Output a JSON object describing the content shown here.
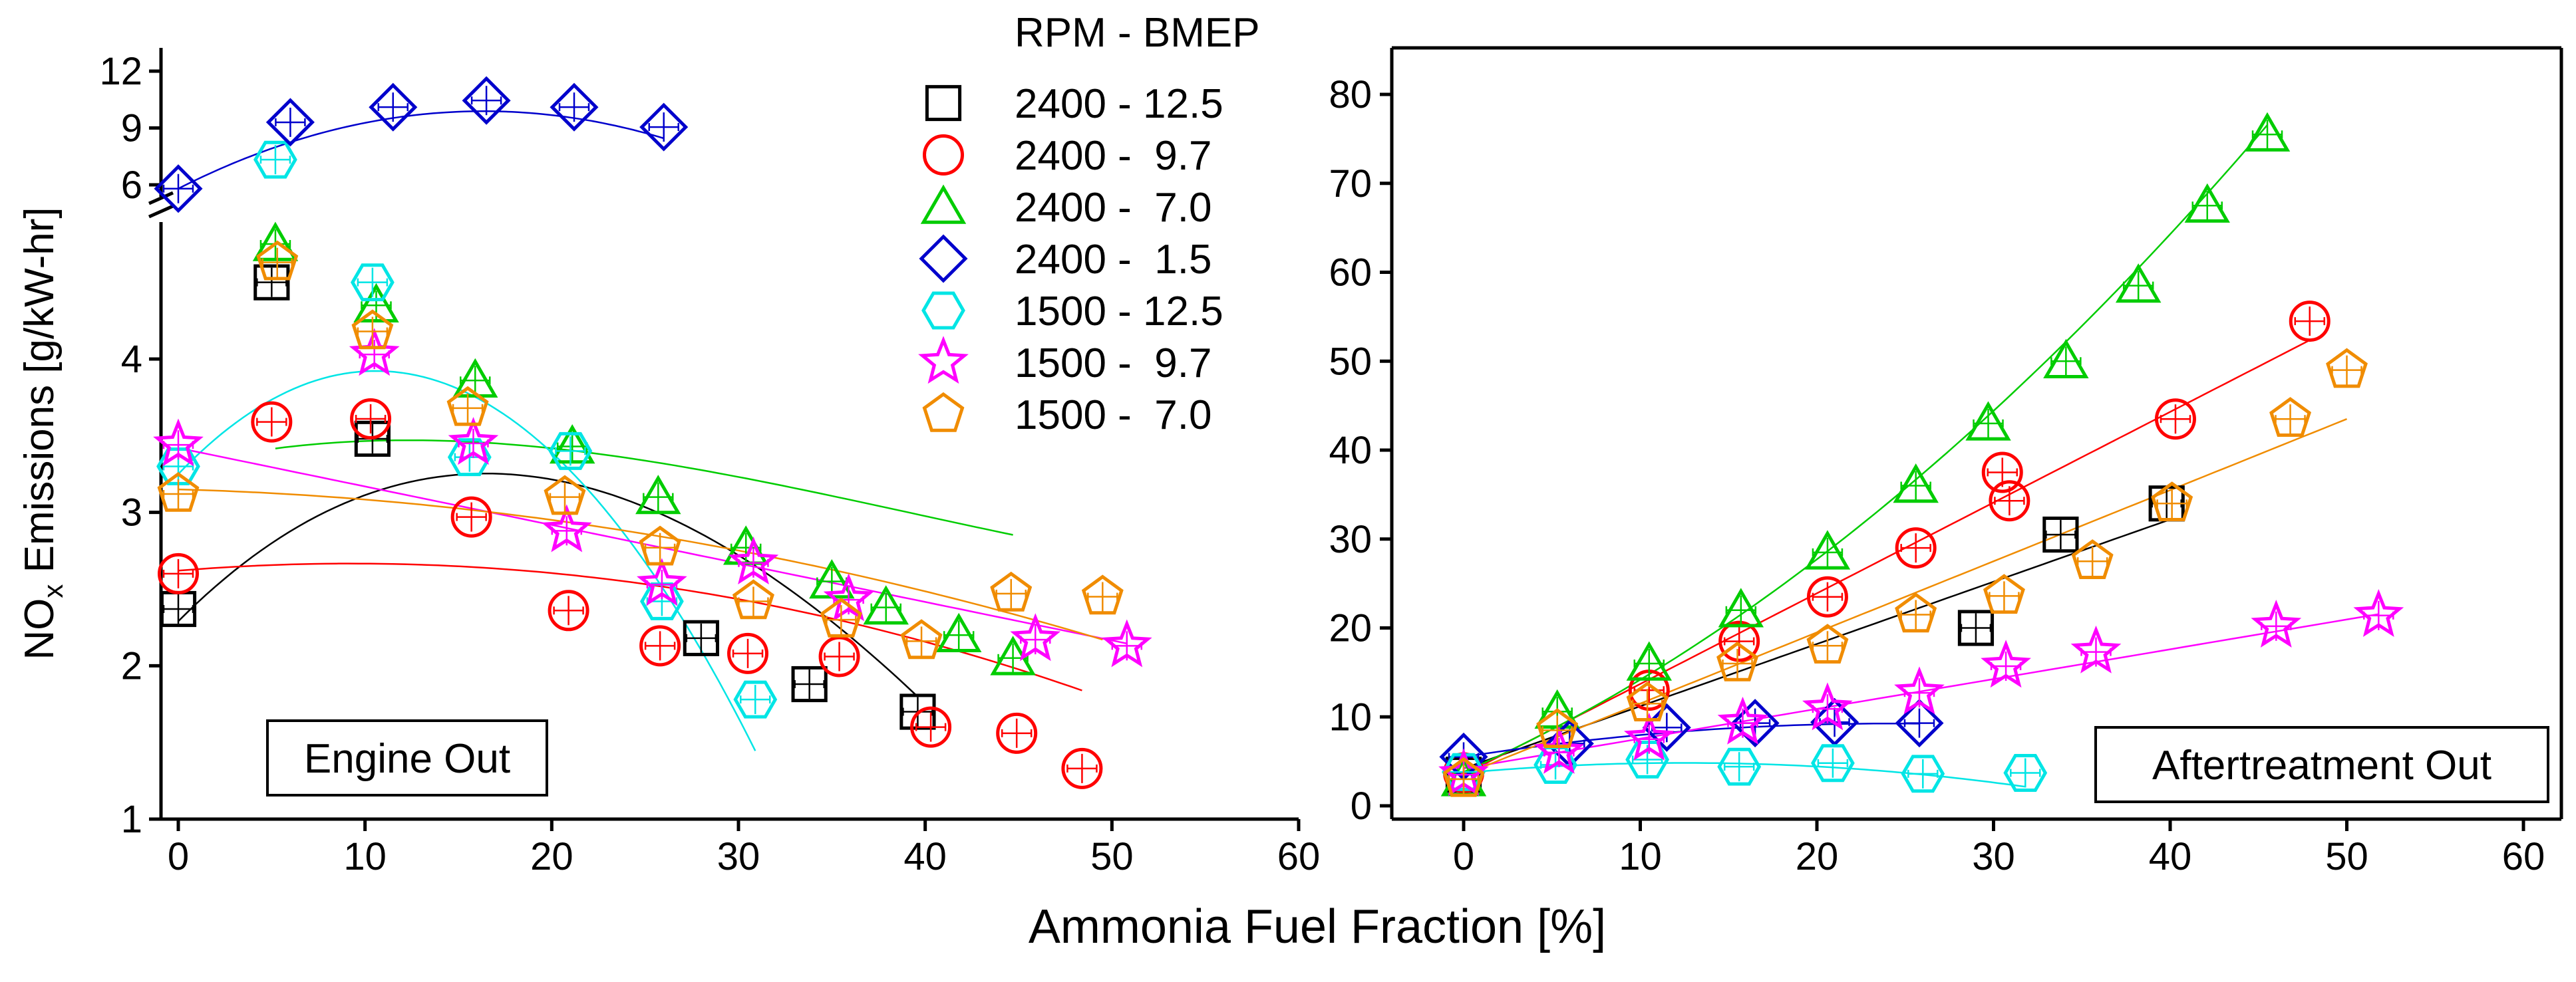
{
  "figure": {
    "xlabel": "Ammonia Fuel Fraction [%]",
    "ylabel_main": "NO",
    "ylabel_sub": "x",
    "ylabel_rest": " Emissions [g/kW-hr]"
  },
  "legend": {
    "title": "RPM - BMEP"
  },
  "series_colors": {
    "2400 - 12.5": "#000000",
    "2400 -  9.7": "#ff0000",
    "2400 -  7.0": "#00cc00",
    "2400 -  1.5": "#0000cc",
    "1500 - 12.5": "#00e5e5",
    "1500 -  9.7": "#ff00ff",
    "1500 -  7.0": "#f08c00"
  },
  "chart_data": [
    {
      "type": "scatter",
      "panel": "engine-out",
      "title": "Engine Out",
      "xlabel": "Ammonia Fuel Fraction [%]",
      "ylabel": "NOx Emissions [g/kW-hr]",
      "xlim": [
        -1,
        60
      ],
      "xticks": [
        0,
        10,
        20,
        30,
        40,
        50,
        60
      ],
      "lower_ylim": [
        1,
        5.5
      ],
      "lower_yticks": [
        1,
        2,
        3,
        4
      ],
      "upper_ylim": [
        5,
        13
      ],
      "upper_yticks": [
        6,
        9,
        12
      ],
      "axis_break": true,
      "series": [
        {
          "name": "2400 - 12.5",
          "marker": "square",
          "color": "#000000",
          "points": [
            [
              0,
              2.37
            ],
            [
              5,
              4.5
            ],
            [
              10.4,
              3.48
            ],
            [
              28,
              2.18
            ],
            [
              33.8,
              1.88
            ],
            [
              39.6,
              1.7
            ]
          ],
          "fit": [
            2.29,
            0.1224,
            -0.00422,
            2.06e-05
          ]
        },
        {
          "name": "2400 -  9.7",
          "marker": "circle",
          "color": "#ff0000",
          "points": [
            [
              0,
              2.6
            ],
            [
              5,
              3.59
            ],
            [
              10.3,
              3.61
            ],
            [
              15.7,
              2.97
            ],
            [
              20.9,
              2.36
            ],
            [
              25.8,
              2.13
            ],
            [
              30.5,
              2.08
            ],
            [
              35.4,
              2.06
            ],
            [
              40.3,
              1.6
            ],
            [
              44.9,
              1.56
            ],
            [
              48.4,
              1.33
            ]
          ],
          "fit": [
            2.62,
            0.01,
            -0.00054,
            0
          ]
        },
        {
          "name": "2400 -  7.0",
          "marker": "triangle",
          "color": "#00cc00",
          "points": [
            [
              5.2,
              4.75
            ],
            [
              10.6,
              4.35
            ],
            [
              15.9,
              3.86
            ],
            [
              21.1,
              3.43
            ],
            [
              25.7,
              3.1
            ],
            [
              30.4,
              2.77
            ],
            [
              35,
              2.55
            ],
            [
              37.9,
              2.38
            ],
            [
              41.8,
              2.2
            ],
            [
              44.7,
              2.05
            ]
          ],
          "fit": [
            3.3,
            0.0295,
            -0.00142,
            1.2e-05
          ]
        },
        {
          "name": "1500 - 12.5",
          "marker": "hexagon",
          "color": "#00e5e5",
          "points": [
            [
              0,
              3.3
            ],
            [
              5.2,
              5.3
            ],
            [
              10.4,
              4.5
            ],
            [
              15.6,
              3.36
            ],
            [
              21,
              3.4
            ],
            [
              25.9,
              2.42
            ],
            [
              30.9,
              1.78
            ]
          ],
          "fit": [
            3.25,
            0.127,
            -0.006,
            0
          ]
        },
        {
          "name": "1500 -  9.7",
          "marker": "star",
          "color": "#ff00ff",
          "points": [
            [
              0,
              3.44
            ],
            [
              10.5,
              4.03
            ],
            [
              15.8,
              3.45
            ],
            [
              20.8,
              2.88
            ],
            [
              25.9,
              2.53
            ],
            [
              30.8,
              2.67
            ],
            [
              35.9,
              2.43
            ],
            [
              45.9,
              2.17
            ],
            [
              50.8,
              2.13
            ]
          ],
          "fit": [
            3.42,
            -0.0251,
            0,
            0
          ]
        },
        {
          "name": "1500 -  7.0",
          "marker": "pentagon",
          "color": "#f08c00",
          "points": [
            [
              0,
              3.12
            ],
            [
              5.3,
              4.63
            ],
            [
              10.4,
              4.18
            ],
            [
              15.5,
              3.68
            ],
            [
              20.7,
              3.1
            ],
            [
              25.8,
              2.77
            ],
            [
              30.8,
              2.42
            ],
            [
              35.5,
              2.3
            ],
            [
              39.8,
              2.16
            ],
            [
              44.6,
              2.47
            ],
            [
              49.5,
              2.45
            ]
          ],
          "fit": [
            3.15,
            -0.0033,
            -0.000333,
            0
          ]
        },
        {
          "name": "2400 -  1.5",
          "marker": "diamond",
          "color": "#0000cc",
          "axis": "upper",
          "points": [
            [
              0,
              5.8
            ],
            [
              6,
              9.3
            ],
            [
              11.5,
              10.1
            ],
            [
              16.5,
              10.45
            ],
            [
              21.2,
              10.1
            ],
            [
              26,
              9.05
            ]
          ],
          "fit": [
            5.8,
            0.5,
            -0.0153,
            0
          ]
        }
      ]
    },
    {
      "type": "scatter",
      "panel": "aftertreatment-out",
      "title": "Aftertreatment Out",
      "xlabel": "Ammonia Fuel Fraction [%]",
      "ylabel": "NOx Emissions [g/kW-hr]",
      "xlim": [
        -4,
        62
      ],
      "xticks": [
        0,
        10,
        20,
        30,
        40,
        50,
        60
      ],
      "ylim": [
        -2,
        85
      ],
      "yticks": [
        0,
        10,
        20,
        30,
        40,
        50,
        60,
        70,
        80
      ],
      "series": [
        {
          "name": "2400 - 12.5",
          "marker": "square",
          "color": "#000000",
          "points": [
            [
              0,
              3.5
            ],
            [
              29,
              20
            ],
            [
              33.8,
              30.5
            ],
            [
              39.8,
              34
            ]
          ],
          "fit": [
            4.2,
            0.7,
            0,
            0
          ]
        },
        {
          "name": "2400 -  9.7",
          "marker": "circle",
          "color": "#ff0000",
          "points": [
            [
              0,
              3.7
            ],
            [
              10.5,
              13
            ],
            [
              15.6,
              18.5
            ],
            [
              20.6,
              23.5
            ],
            [
              25.6,
              29
            ],
            [
              30.5,
              37.5
            ],
            [
              30.9,
              34.3
            ],
            [
              40.3,
              43.5
            ],
            [
              47.9,
              54.5
            ]
          ],
          "fit": [
            3.5,
            1.02,
            0,
            0
          ]
        },
        {
          "name": "2400 -  7.0",
          "marker": "triangle",
          "color": "#00cc00",
          "points": [
            [
              0,
              3
            ],
            [
              5.3,
              10.6
            ],
            [
              10.5,
              16
            ],
            [
              15.7,
              22
            ],
            [
              20.6,
              28.5
            ],
            [
              25.6,
              36
            ],
            [
              29.7,
              43
            ],
            [
              34.1,
              50
            ],
            [
              38.2,
              58.5
            ],
            [
              42.1,
              67.5
            ],
            [
              45.5,
              75.5
            ]
          ],
          "fit": [
            3.8,
            0.88,
            0.0158,
            0
          ]
        },
        {
          "name": "2400 -  1.5",
          "marker": "diamond",
          "color": "#0000cc",
          "points": [
            [
              0,
              5.5
            ],
            [
              6,
              7
            ],
            [
              11.5,
              8.8
            ],
            [
              16.5,
              9.3
            ],
            [
              21,
              9.4
            ],
            [
              25.8,
              9.3
            ]
          ],
          "fit": [
            5.5,
            0.31,
            -0.0064,
            0
          ]
        },
        {
          "name": "1500 - 12.5",
          "marker": "hexagon",
          "color": "#00e5e5",
          "points": [
            [
              0,
              3.8
            ],
            [
              5.2,
              4.6
            ],
            [
              10.4,
              5.2
            ],
            [
              15.6,
              4.4
            ],
            [
              20.9,
              4.8
            ],
            [
              26,
              3.6
            ],
            [
              31.8,
              3.7
            ]
          ],
          "fit": [
            3.7,
            0.18,
            -0.0072,
            0
          ]
        },
        {
          "name": "1500 -  9.7",
          "marker": "star",
          "color": "#ff00ff",
          "points": [
            [
              0,
              3.5
            ],
            [
              5.4,
              6
            ],
            [
              10.5,
              7.5
            ],
            [
              15.8,
              9.3
            ],
            [
              20.6,
              10.9
            ],
            [
              25.8,
              12.7
            ],
            [
              30.7,
              15.7
            ],
            [
              35.8,
              17.3
            ],
            [
              46,
              20.2
            ],
            [
              51.8,
              21.4
            ]
          ],
          "fit": [
            4.2,
            0.335,
            0,
            0
          ]
        },
        {
          "name": "1500 -  7.0",
          "marker": "pentagon",
          "color": "#f08c00",
          "points": [
            [
              0,
              3
            ],
            [
              5.3,
              8.5
            ],
            [
              10.4,
              11.5
            ],
            [
              15.5,
              16
            ],
            [
              20.6,
              18
            ],
            [
              25.6,
              21.5
            ],
            [
              30.6,
              23.6
            ],
            [
              35.6,
              27.5
            ],
            [
              40.1,
              34
            ],
            [
              46.8,
              43.5
            ],
            [
              50,
              49
            ]
          ],
          "fit": [
            3.5,
            0.8,
            0,
            0
          ]
        }
      ]
    }
  ]
}
